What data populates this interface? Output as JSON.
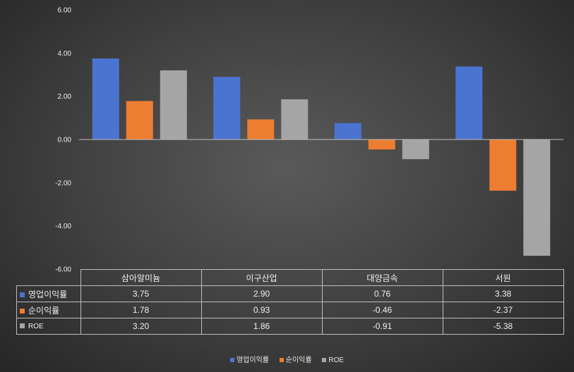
{
  "chart_data": {
    "type": "bar",
    "categories": [
      "삼아알미늄",
      "이구산업",
      "대양금속",
      "서원"
    ],
    "series": [
      {
        "name": "영업이익률",
        "values": [
          3.75,
          2.9,
          0.76,
          3.38
        ],
        "labels": [
          "3.75",
          "2.90",
          "0.76",
          "3.38"
        ],
        "color": "#4a74d0"
      },
      {
        "name": "순이익률",
        "values": [
          1.78,
          0.93,
          -0.46,
          -2.37
        ],
        "labels": [
          "1.78",
          "0.93",
          "-0.46",
          "-2.37"
        ],
        "color": "#ed7d31"
      },
      {
        "name": "ROE",
        "values": [
          3.2,
          1.86,
          -0.91,
          -5.38
        ],
        "labels": [
          "3.20",
          "1.86",
          "-0.91",
          "-5.38"
        ],
        "color": "#a5a5a5"
      }
    ],
    "yticks": [
      "6.00",
      "4.00",
      "2.00",
      "0.00",
      "-2.00",
      "-4.00",
      "-6.00"
    ],
    "ylim": [
      -6,
      6
    ],
    "grid": false,
    "legend": "bottom",
    "data_table": true
  }
}
